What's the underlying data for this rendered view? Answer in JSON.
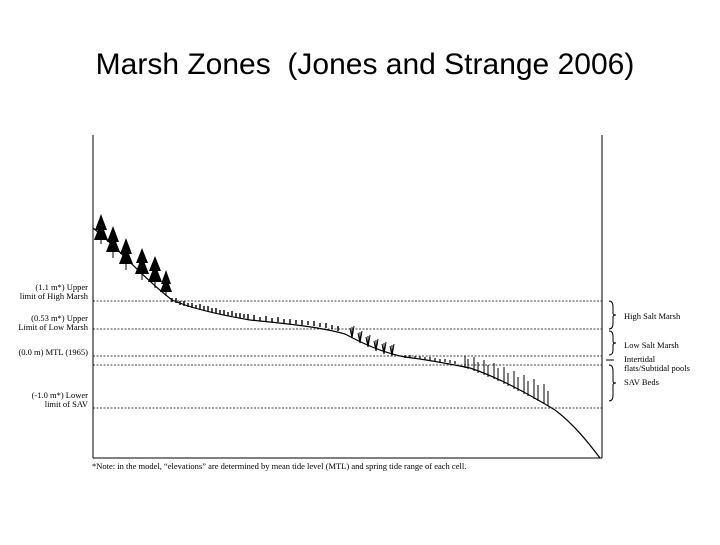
{
  "slide": {
    "title": "Marsh Zones  (Jones and Strange 2006)"
  },
  "figure": {
    "left_labels": [
      {
        "line1": "(1.1 m*) Upper",
        "line2": "limit of High Marsh"
      },
      {
        "line1": "(0.53 m*) Upper",
        "line2": "Limit of Low Marsh"
      },
      {
        "line1": "(0.0 m) MTL (1965)",
        "line2": ""
      },
      {
        "line1": "(-1.0 m*) Lower",
        "line2": "limit of SAV"
      }
    ],
    "right_labels": [
      {
        "line1": "High Salt Marsh",
        "line2": ""
      },
      {
        "line1": "Low Salt Marsh",
        "line2": ""
      },
      {
        "line1": "Intertidal",
        "line2": "flats/Subtidal pools"
      },
      {
        "line1": "SAV Beds",
        "line2": ""
      }
    ],
    "footnote": "*Note: in the model, “elevations” are determined by mean tide level (MTL) and spring tide range of each cell."
  },
  "colors": {
    "line": "#000000",
    "background": "#ffffff"
  }
}
